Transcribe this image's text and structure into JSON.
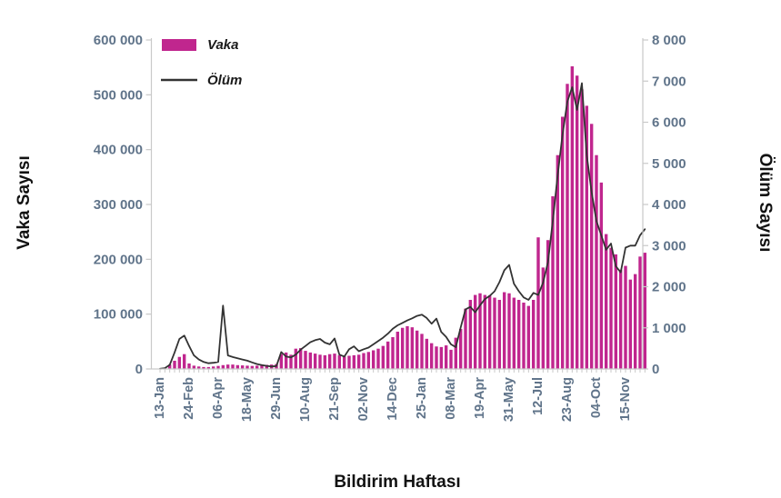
{
  "chart": {
    "x_title": "Bildirim Haftası",
    "y_left_title": "Vaka Sayısı",
    "y_right_title": "Ölüm Sayısı",
    "legend": {
      "bar_label": "Vaka",
      "line_label": "Ölüm"
    },
    "colors": {
      "bar": "#c0268e",
      "line": "#333333",
      "tick_text": "#60748a",
      "title_text": "#121212",
      "axis_line": "#c9c9c9"
    }
  },
  "chart_data": {
    "type": "combo-bar-line",
    "x_axis_note": "weekly bars; one tick label every 6 weeks",
    "x_tick_every": 6,
    "x_tick_labels": [
      "13-Jan",
      "24-Feb",
      "06-Apr",
      "18-May",
      "29-Jun",
      "10-Aug",
      "21-Sep",
      "02-Nov",
      "14-Dec",
      "25-Jan",
      "08-Mar",
      "19-Apr",
      "31-May",
      "12-Jul",
      "23-Aug",
      "04-Oct",
      "15-Nov"
    ],
    "y_left": {
      "min": 0,
      "max": 600000,
      "tick_step": 100000,
      "tick_labels": [
        "0",
        "100 000",
        "200 000",
        "300 000",
        "400 000",
        "500 000",
        "600 000"
      ]
    },
    "y_right": {
      "min": 0,
      "max": 8000,
      "tick_step": 1000,
      "tick_labels": [
        "0",
        "1 000",
        "2 000",
        "3 000",
        "4 000",
        "5 000",
        "6 000",
        "7 000",
        "8 000"
      ]
    },
    "series": [
      {
        "name": "Vaka",
        "type": "bar",
        "axis": "left",
        "values": [
          500,
          2000,
          8000,
          15000,
          22000,
          27000,
          10000,
          6000,
          4500,
          3500,
          3500,
          4500,
          5500,
          7000,
          8000,
          8000,
          7000,
          6500,
          6000,
          5500,
          6000,
          7000,
          7500,
          8000,
          9000,
          27000,
          30000,
          26000,
          37000,
          38000,
          33000,
          30000,
          28000,
          26000,
          25000,
          27000,
          28000,
          25000,
          23000,
          24000,
          25000,
          26000,
          29000,
          31000,
          34000,
          37000,
          42000,
          50000,
          58000,
          68000,
          75000,
          78000,
          76000,
          70000,
          64000,
          55000,
          47000,
          41000,
          40000,
          43000,
          35000,
          57000,
          73000,
          110000,
          126000,
          135000,
          138000,
          135000,
          134000,
          130000,
          126000,
          140000,
          138000,
          130000,
          126000,
          121000,
          115000,
          126000,
          240000,
          185000,
          235000,
          315000,
          390000,
          460000,
          520000,
          552000,
          535000,
          510000,
          480000,
          447000,
          390000,
          340000,
          246000,
          221000,
          209000,
          181000,
          188000,
          163000,
          173000,
          205000,
          212000
        ]
      },
      {
        "name": "Ölüm",
        "type": "line",
        "axis": "right",
        "values": [
          5,
          20,
          100,
          400,
          730,
          810,
          560,
          330,
          230,
          170,
          140,
          150,
          170,
          1540,
          330,
          290,
          260,
          230,
          200,
          160,
          120,
          95,
          75,
          60,
          70,
          410,
          300,
          280,
          350,
          470,
          560,
          650,
          700,
          730,
          640,
          600,
          740,
          350,
          300,
          480,
          550,
          430,
          480,
          520,
          600,
          680,
          760,
          860,
          980,
          1060,
          1120,
          1180,
          1230,
          1290,
          1320,
          1240,
          1100,
          1225,
          900,
          780,
          600,
          530,
          1010,
          1450,
          1510,
          1380,
          1550,
          1700,
          1780,
          1890,
          2110,
          2400,
          2530,
          2070,
          1890,
          1740,
          1680,
          1850,
          1800,
          2100,
          2600,
          3600,
          4700,
          5700,
          6500,
          6850,
          6300,
          6950,
          5200,
          4300,
          3600,
          3250,
          2900,
          3050,
          2500,
          2350,
          2950,
          3000,
          3000,
          3250,
          3400
        ]
      }
    ]
  }
}
